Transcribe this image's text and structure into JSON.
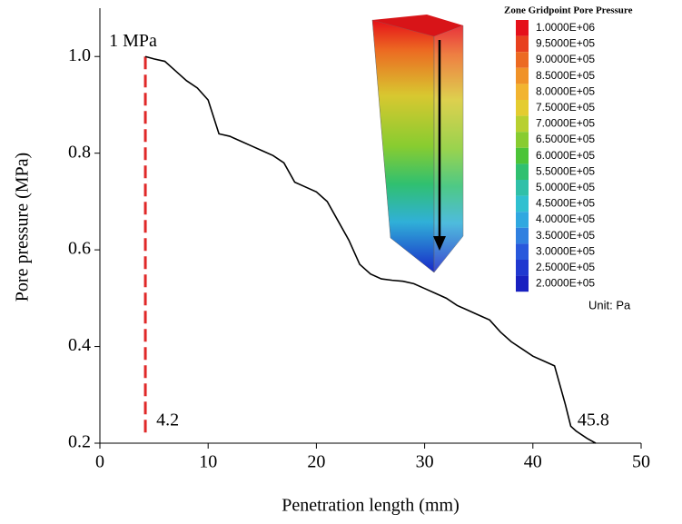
{
  "chart_data": {
    "type": "line",
    "x_label": "Penetration length (mm)",
    "y_label": "Pore pressure (MPa)",
    "x": [
      4.2,
      5,
      6,
      7,
      8,
      9,
      10,
      11,
      12,
      13,
      14,
      15,
      16,
      17,
      18,
      19,
      20,
      21,
      22,
      23,
      24,
      25,
      26,
      27,
      28,
      29,
      30,
      31,
      32,
      33,
      34,
      35,
      36,
      37,
      38,
      39,
      40,
      41,
      42,
      43,
      43.5,
      44,
      45,
      45.8
    ],
    "values": [
      1.0,
      0.995,
      0.99,
      0.97,
      0.95,
      0.935,
      0.91,
      0.84,
      0.835,
      0.825,
      0.815,
      0.805,
      0.795,
      0.78,
      0.74,
      0.73,
      0.72,
      0.7,
      0.66,
      0.62,
      0.57,
      0.55,
      0.54,
      0.537,
      0.535,
      0.53,
      0.52,
      0.51,
      0.5,
      0.485,
      0.475,
      0.465,
      0.455,
      0.43,
      0.41,
      0.395,
      0.38,
      0.37,
      0.36,
      0.28,
      0.235,
      0.225,
      0.21,
      0.2
    ],
    "color": "#000000",
    "xlim": [
      0,
      50
    ],
    "xticks": [
      0,
      10,
      20,
      30,
      40,
      50
    ],
    "ylim": [
      0.2,
      1.1
    ],
    "yticks": [
      0.2,
      0.4,
      0.6,
      0.8,
      1.0
    ],
    "vline": {
      "x": 4.2,
      "top": 1.0,
      "label": "1 MPa",
      "color": "#e02828"
    },
    "inset": {
      "title": "Zone Gridpoint Pore Pressure",
      "unit": "Unit: Pa",
      "legend": [
        {
          "label": "1.0000E+06",
          "color": "#e5101a"
        },
        {
          "label": "9.5000E+05",
          "color": "#e8401e"
        },
        {
          "label": "9.0000E+05",
          "color": "#ec6a22"
        },
        {
          "label": "8.5000E+05",
          "color": "#f09228"
        },
        {
          "label": "8.0000E+05",
          "color": "#f2b430"
        },
        {
          "label": "7.5000E+05",
          "color": "#e4cc30"
        },
        {
          "label": "7.0000E+05",
          "color": "#b8d030"
        },
        {
          "label": "6.5000E+05",
          "color": "#88cc30"
        },
        {
          "label": "6.0000E+05",
          "color": "#4cc438"
        },
        {
          "label": "5.5000E+05",
          "color": "#30c070"
        },
        {
          "label": "5.0000E+05",
          "color": "#30c0a8"
        },
        {
          "label": "4.5000E+05",
          "color": "#30c0d0"
        },
        {
          "label": "4.0000E+05",
          "color": "#30a8e0"
        },
        {
          "label": "3.5000E+05",
          "color": "#3080e0"
        },
        {
          "label": "3.0000E+05",
          "color": "#2858dc"
        },
        {
          "label": "2.5000E+05",
          "color": "#2038d0"
        },
        {
          "label": "2.0000E+05",
          "color": "#1820c0"
        }
      ]
    }
  }
}
